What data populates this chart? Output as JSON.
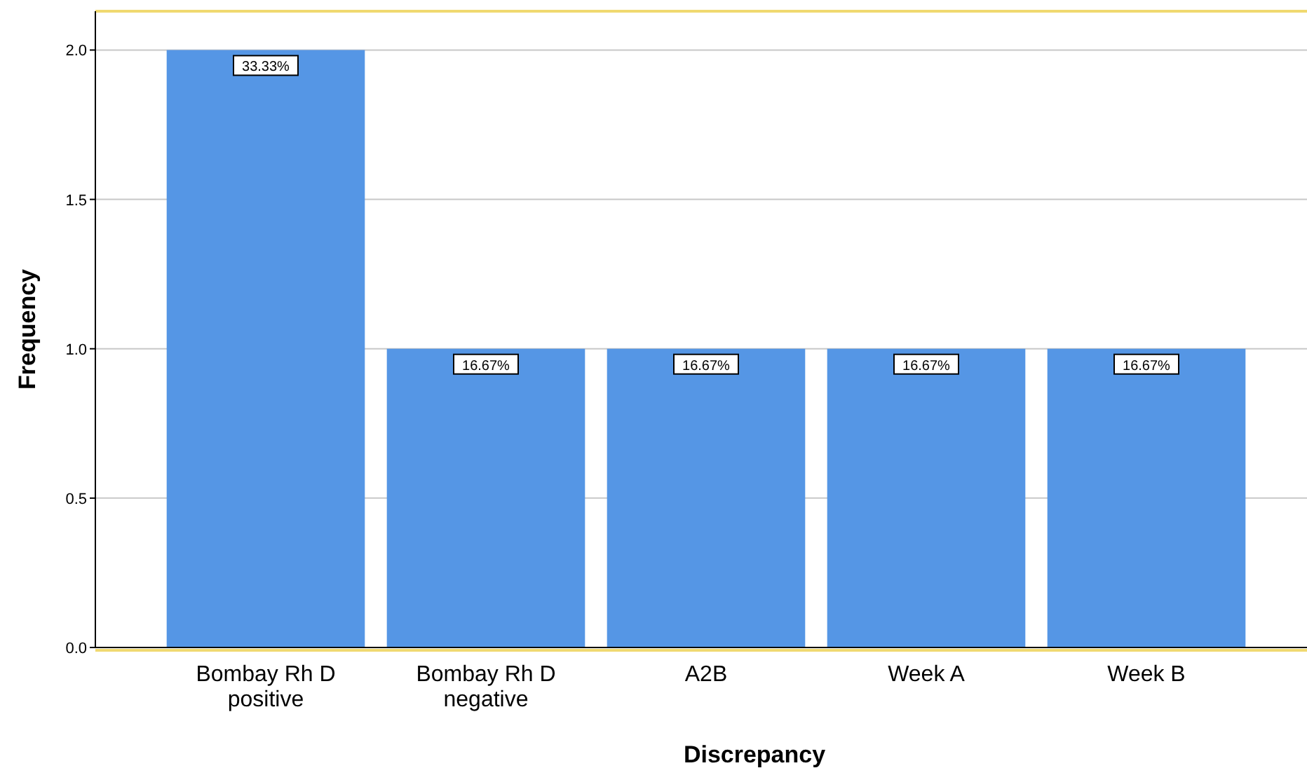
{
  "chart_data": {
    "type": "bar",
    "xlabel": "Discrepancy",
    "ylabel": "Frequency",
    "categories": [
      "Bombay Rh D\npositive",
      "Bombay Rh D\nnegative",
      "A2B",
      "Week A",
      "Week B"
    ],
    "values": [
      2,
      1,
      1,
      1,
      1
    ],
    "color": "#5596e5",
    "annotations": [
      {
        "text": "33.33%",
        "x": "Bombay Rh D\npositive",
        "y": 2
      },
      {
        "text": "16.67%",
        "x": "Bombay Rh D\nnegative",
        "y": 1
      },
      {
        "text": "16.67%",
        "x": "A2B",
        "y": 1
      },
      {
        "text": "16.67%",
        "x": "Week A",
        "y": 1
      },
      {
        "text": "16.67%",
        "x": "Week B",
        "y": 1
      }
    ],
    "ylim": [
      0,
      2.13
    ],
    "yticks": [
      {
        "value": 0,
        "label": "0.0"
      },
      {
        "value": 0.5,
        "label": "0.5"
      },
      {
        "value": 1,
        "label": "1.0"
      },
      {
        "value": 1.5,
        "label": "1.5"
      },
      {
        "value": 2,
        "label": "2.0"
      }
    ],
    "grid": "y"
  }
}
